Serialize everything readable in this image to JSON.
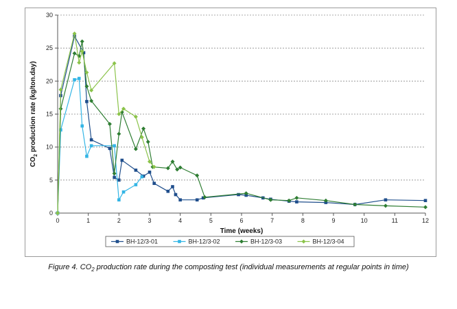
{
  "chart_data": {
    "type": "line",
    "xlabel": "Time (weeks)",
    "ylabel": "CO2 production rate (kg/ton.day)",
    "ylabel_parts": {
      "pre": "CO",
      "sub": "2",
      "post": " production rate (kg/ton.day)"
    },
    "xlim": [
      0,
      12
    ],
    "ylim": [
      0,
      30
    ],
    "x_ticks": [
      0,
      1,
      2,
      3,
      4,
      5,
      6,
      7,
      8,
      9,
      10,
      11,
      12
    ],
    "y_ticks": [
      0,
      5,
      10,
      15,
      20,
      25,
      30
    ],
    "grid": "horizontal",
    "legend_position": "bottom",
    "series": [
      {
        "name": "BH-12/3-01",
        "color": "#1f4e8c",
        "marker": "square",
        "x": [
          0,
          0.1,
          0.55,
          0.85,
          0.95,
          1.1,
          1.7,
          1.85,
          2.0,
          2.1,
          2.55,
          2.8,
          3.0,
          3.15,
          3.6,
          3.75,
          3.85,
          4.0,
          4.55,
          4.75,
          5.9,
          6.15,
          6.7,
          6.95,
          7.55,
          7.8,
          8.75,
          9.7,
          10.7,
          12.0
        ],
        "y": [
          0,
          17.8,
          26.8,
          24.3,
          16.9,
          11.1,
          9.8,
          5.4,
          5.0,
          8.0,
          6.5,
          5.6,
          6.2,
          4.5,
          3.3,
          4.0,
          2.8,
          2.0,
          2.0,
          2.3,
          2.8,
          2.7,
          2.3,
          2.1,
          1.8,
          1.7,
          1.6,
          1.3,
          2.0,
          1.9
        ]
      },
      {
        "name": "BH-12/3-02",
        "color": "#33b5e5",
        "marker": "square",
        "x": [
          0,
          0.1,
          0.55,
          0.7,
          0.8,
          0.95,
          1.1,
          1.85,
          2.0,
          2.15,
          2.55,
          2.75
        ],
        "y": [
          0,
          12.6,
          20.2,
          20.4,
          13.2,
          8.6,
          10.2,
          10.2,
          2.0,
          3.2,
          4.3,
          5.5
        ]
      },
      {
        "name": "BH-12/3-03",
        "color": "#2e7d32",
        "marker": "diamond",
        "x": [
          0,
          0.1,
          0.55,
          0.7,
          0.8,
          0.95,
          1.1,
          1.7,
          1.85,
          2.0,
          2.1,
          2.55,
          2.8,
          2.95,
          3.1,
          3.6,
          3.75,
          3.9,
          4.0,
          4.55,
          4.8,
          6.15,
          6.95,
          7.55,
          7.8,
          8.75,
          9.7,
          10.7,
          12.0
        ],
        "y": [
          0,
          15.8,
          24.2,
          23.8,
          26.0,
          19.2,
          17.0,
          13.5,
          6.0,
          12.0,
          15.3,
          9.7,
          12.8,
          10.8,
          7.0,
          6.8,
          7.8,
          6.6,
          6.9,
          5.7,
          2.4,
          3.0,
          2.0,
          1.9,
          2.3,
          1.9,
          1.3,
          1.1,
          0.9
        ]
      },
      {
        "name": "BH-12/3-04",
        "color": "#8bc34a",
        "marker": "diamond",
        "x": [
          0,
          0.1,
          0.55,
          0.7,
          0.8,
          0.95,
          1.1,
          1.85,
          2.0,
          2.15,
          2.55,
          2.75,
          3.0,
          3.15
        ],
        "y": [
          0,
          18.7,
          27.2,
          22.8,
          24.5,
          21.3,
          18.6,
          22.7,
          15.0,
          15.8,
          14.6,
          11.5,
          7.8,
          7.0
        ]
      }
    ]
  },
  "caption": {
    "prefix": "Figure 4. CO",
    "sub": "2",
    "suffix": " production rate during the composting test (individual measurements at regular points in time)"
  }
}
